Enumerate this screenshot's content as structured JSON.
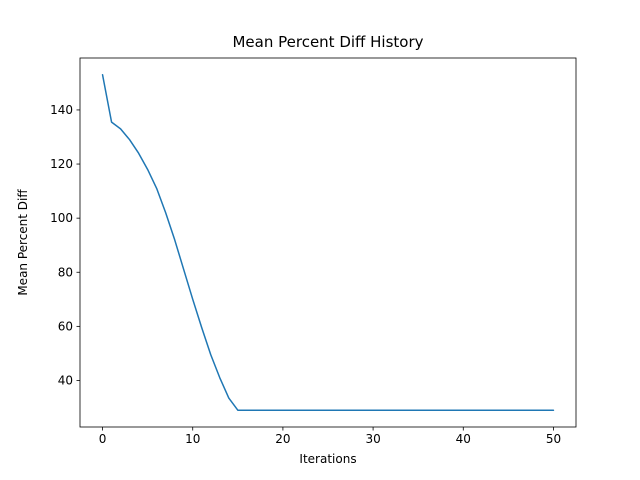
{
  "chart_data": {
    "type": "line",
    "title": "Mean Percent Diff History",
    "xlabel": "Iterations",
    "ylabel": "Mean Percent Diff",
    "x": [
      0,
      1,
      2,
      3,
      4,
      5,
      6,
      7,
      8,
      9,
      10,
      11,
      12,
      13,
      14,
      15,
      16,
      17,
      18,
      19,
      20,
      21,
      22,
      23,
      24,
      25,
      26,
      27,
      28,
      29,
      30,
      31,
      32,
      33,
      34,
      35,
      36,
      37,
      38,
      39,
      40,
      41,
      42,
      43,
      44,
      45,
      46,
      47,
      48,
      49,
      50
    ],
    "y": [
      153,
      135.5,
      133,
      129,
      124,
      118,
      111,
      102,
      92,
      81,
      70,
      59.5,
      49.5,
      41,
      33.5,
      29,
      29,
      29,
      29,
      29,
      29,
      29,
      29,
      29,
      29,
      29,
      29,
      29,
      29,
      29,
      29,
      29,
      29,
      29,
      29,
      29,
      29,
      29,
      29,
      29,
      29,
      29,
      29,
      29,
      29,
      29,
      29,
      29,
      29,
      29,
      29
    ],
    "xlim": [
      -2.5,
      52.5
    ],
    "ylim": [
      22.8,
      159.2
    ],
    "xticks": [
      0,
      10,
      20,
      30,
      40,
      50
    ],
    "yticks": [
      40,
      60,
      80,
      100,
      120,
      140
    ],
    "grid": false,
    "legend": null,
    "line_color": "#1f77b4",
    "line_width": 1.5,
    "axis_color": "#000000",
    "background": "#ffffff"
  }
}
